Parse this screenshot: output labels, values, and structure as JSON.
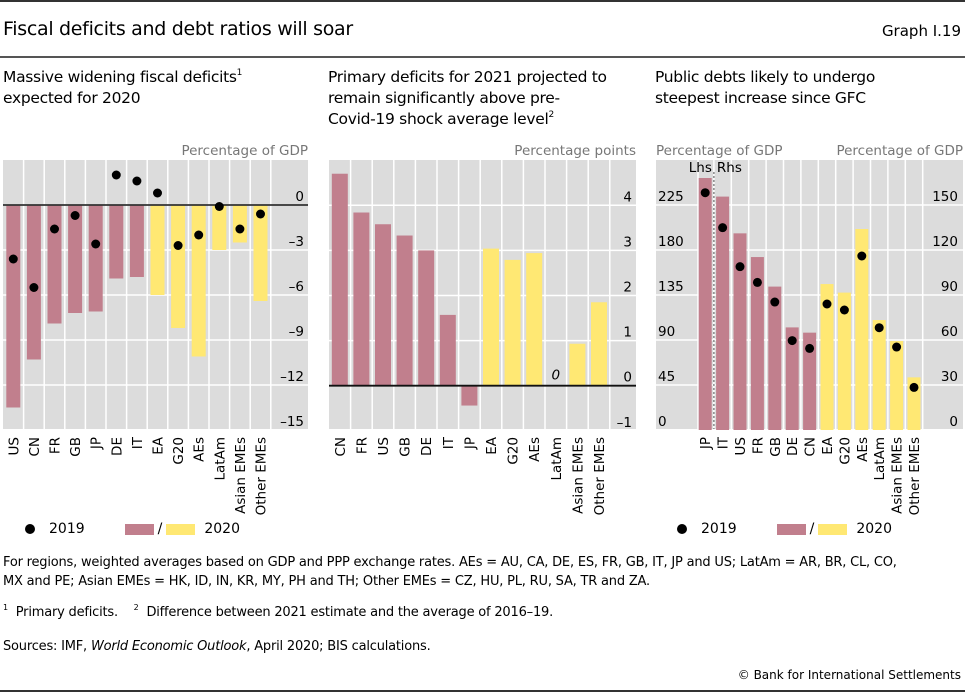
{
  "header": {
    "title": "Fiscal deficits and debt ratios will soar",
    "graph_id": "Graph I.19"
  },
  "colors": {
    "advanced": "#c17f8d",
    "regions": "#ffe873",
    "plot_bg": "#dcdcdc",
    "grid": "#ffffff",
    "dot": "#000000"
  },
  "legend": {
    "dot_label": "2019",
    "bar_label": "2020",
    "slash": "/"
  },
  "chart_data": [
    {
      "type": "bar",
      "title": "Massive widening fiscal deficits",
      "title_line2": "expected for 2020",
      "title_footnote": "1",
      "unit_label": "Percentage of GDP",
      "ylim": [
        -16,
        3.5
      ],
      "yticks": [
        0,
        -3,
        -6,
        -9,
        -12,
        -15
      ],
      "ytick_labels": [
        "0",
        "–3",
        "–6",
        "–9",
        "–12",
        "–15"
      ],
      "grid": true,
      "categories": [
        "US",
        "CN",
        "FR",
        "GB",
        "JP",
        "DE",
        "IT",
        "EA",
        "G20",
        "AEs",
        "LatAm",
        "Asian EMEs",
        "Other EMEs"
      ],
      "bar_color_groups": [
        "advanced",
        "advanced",
        "advanced",
        "advanced",
        "advanced",
        "advanced",
        "advanced",
        "regions",
        "regions",
        "regions",
        "regions",
        "regions",
        "regions"
      ],
      "series": [
        {
          "name": "2020",
          "kind": "bar",
          "values": [
            -13.5,
            -10.3,
            -7.9,
            -7.2,
            -7.1,
            -4.9,
            -4.8,
            -6.0,
            -8.2,
            -10.1,
            -3.0,
            -2.5,
            -6.4
          ]
        },
        {
          "name": "2019",
          "kind": "dot",
          "values": [
            -3.6,
            -5.5,
            -1.6,
            -0.7,
            -2.6,
            2.0,
            1.6,
            0.8,
            -2.7,
            -2.0,
            -0.1,
            -1.6,
            -0.6
          ]
        }
      ]
    },
    {
      "type": "bar",
      "title": "Primary deficits for 2021 projected to",
      "title_line2": "remain significantly above pre-",
      "title_line3": "Covid-19 shock average level",
      "title_footnote": "2",
      "unit_label": "Percentage points",
      "ylim": [
        -1.35,
        4.9
      ],
      "yticks": [
        4,
        3,
        2,
        1,
        0,
        -1
      ],
      "ytick_labels": [
        "4",
        "3",
        "2",
        "1",
        "0",
        "–1"
      ],
      "grid": true,
      "categories": [
        "CN",
        "FR",
        "US",
        "GB",
        "DE",
        "IT",
        "JP",
        "EA",
        "G20",
        "AEs",
        "LatAm",
        "Asian EMEs",
        "Other EMEs"
      ],
      "bar_color_groups": [
        "advanced",
        "advanced",
        "advanced",
        "advanced",
        "advanced",
        "advanced",
        "advanced",
        "regions",
        "regions",
        "regions",
        "regions",
        "regions",
        "regions"
      ],
      "series": [
        {
          "name": "2021 vs 2016–19 average",
          "kind": "bar",
          "values": [
            4.7,
            3.84,
            3.58,
            3.33,
            3.0,
            1.57,
            -0.44,
            3.04,
            2.79,
            2.94,
            0,
            0.93,
            1.85
          ]
        }
      ],
      "annotations": [
        {
          "category": "LatAm",
          "text": "0"
        }
      ]
    },
    {
      "type": "bar",
      "title": "Public debts likely to undergo",
      "title_line2": "steepest increase since GFC",
      "unit_label_left": "Percentage of GDP",
      "unit_label_right": "Percentage of GDP",
      "axis_split_left": "Lhs",
      "axis_split_right": "Rhs",
      "ylim_left": [
        0,
        262
      ],
      "ylim_right": [
        0,
        174.7
      ],
      "yticks_left": [
        0,
        45,
        90,
        135,
        180,
        225
      ],
      "yticks_right": [
        0,
        30,
        60,
        90,
        120,
        150
      ],
      "grid": true,
      "categories": [
        "JP",
        "IT",
        "US",
        "FR",
        "GB",
        "DE",
        "CN",
        "EA",
        "G20",
        "AEs",
        "LatAm",
        "Asian EMEs",
        "Other EMEs"
      ],
      "axis_assignment": [
        "left",
        "right",
        "right",
        "right",
        "right",
        "right",
        "right",
        "right",
        "right",
        "right",
        "right",
        "right",
        "right"
      ],
      "bar_color_groups": [
        "advanced",
        "advanced",
        "advanced",
        "advanced",
        "advanced",
        "advanced",
        "advanced",
        "regions",
        "regions",
        "regions",
        "regions",
        "regions",
        "regions"
      ],
      "series": [
        {
          "name": "2020",
          "kind": "bar",
          "values": [
            252,
            155.6,
            131.1,
            115.3,
            95.6,
            68.4,
            64.9,
            97.3,
            91.6,
            134.0,
            73.3,
            59.3,
            35.1
          ]
        },
        {
          "name": "2019",
          "kind": "dot",
          "values": [
            237.3,
            134.9,
            108.9,
            98.4,
            85.3,
            59.6,
            54.4,
            84.0,
            80.0,
            116.0,
            68.2,
            55.3,
            28.4
          ]
        }
      ]
    }
  ],
  "notes": {
    "regions_line1": "For regions, weighted averages based on GDP and PPP exchange rates. AEs = AU, CA, DE, ES, FR, GB, IT, JP and US; LatAm = AR, BR, CL, CO,",
    "regions_line2": "MX and PE; Asian EMEs = HK, ID, IN, KR, MY, PH and TH; Other EMEs = CZ, HU, PL, RU, SA, TR and ZA.",
    "fn1_mark": "1",
    "fn1_text": "Primary deficits.",
    "fn2_mark": "2",
    "fn2_text": "Difference between 2021 estimate and the average of 2016–19.",
    "sources_prefix": "Sources: IMF, ",
    "sources_italic": "World Economic Outlook",
    "sources_suffix": ", April 2020; BIS calculations.",
    "copyright": "© Bank for International Settlements"
  }
}
